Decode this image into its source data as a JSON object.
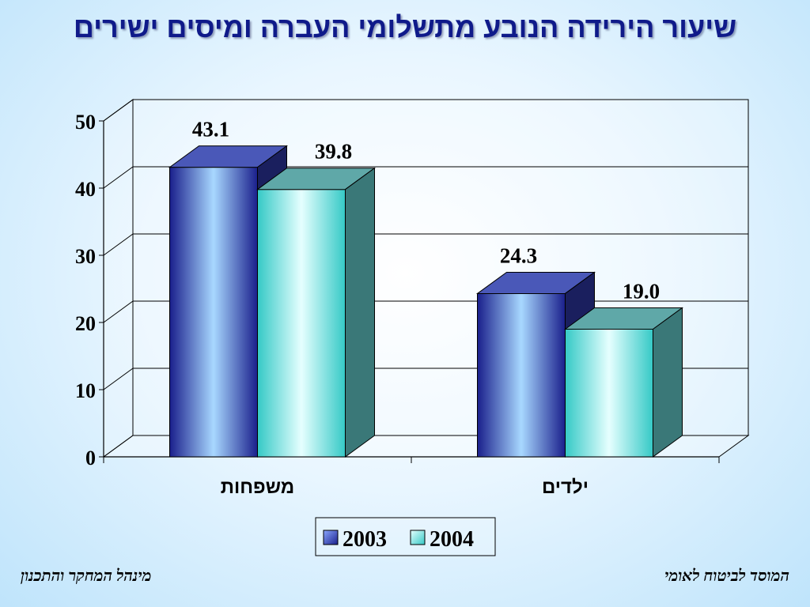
{
  "title": "שיעור הירידה הנובע מתשלומי העברה ומיסים ישירים",
  "footer": {
    "left": "מינהל המחקר והתכנון",
    "right": "המוסד לביטוח לאומי"
  },
  "chart_data": {
    "type": "bar",
    "title": "שיעור הירידה הנובע מתשלומי העברה ומיסים ישירים",
    "categories": [
      "משפחות",
      "ילדים"
    ],
    "series": [
      {
        "name": "2003",
        "values": [
          43.1,
          24.3
        ],
        "labels": [
          "43.1",
          "24.3"
        ]
      },
      {
        "name": "2004",
        "values": [
          39.8,
          19.0
        ],
        "labels": [
          "39.8",
          "19.0"
        ]
      }
    ],
    "ylim": [
      0,
      50
    ],
    "yticks": [
      "0",
      "10",
      "20",
      "30",
      "40",
      "50"
    ],
    "grid": true,
    "legend": "bottom"
  },
  "colors": {
    "series_2003": "#1a1f8c",
    "series_2004": "#3fd0cc"
  }
}
